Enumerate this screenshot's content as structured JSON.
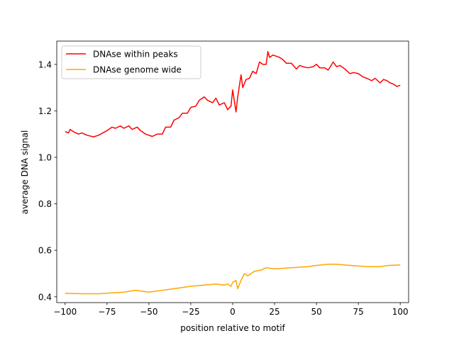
{
  "chart_data": {
    "type": "line",
    "title": "",
    "xlabel": "position relative to motif",
    "ylabel": "average DNA signal",
    "xlim": [
      -105,
      105
    ],
    "ylim": [
      0.375,
      1.5
    ],
    "xticks": [
      -100,
      -75,
      -50,
      -25,
      0,
      25,
      50,
      75,
      100
    ],
    "xtick_labels": [
      "−100",
      "−75",
      "−50",
      "−25",
      "0",
      "25",
      "50",
      "75",
      "100"
    ],
    "yticks": [
      0.4,
      0.6,
      0.8,
      1.0,
      1.2,
      1.4
    ],
    "ytick_labels": [
      "0.4",
      "0.6",
      "0.8",
      "1.0",
      "1.2",
      "1.4"
    ],
    "grid": false,
    "legend_position": "top-left",
    "series": [
      {
        "name": "DNAse within peaks",
        "color": "#ff0000",
        "x": [
          -100,
          -98,
          -97,
          -95,
          -92,
          -90,
          -87,
          -83,
          -80,
          -75,
          -72,
          -70,
          -67,
          -65,
          -62,
          -60,
          -57,
          -55,
          -52,
          -48,
          -45,
          -42,
          -40,
          -37,
          -35,
          -32,
          -30,
          -27,
          -25,
          -22,
          -20,
          -17,
          -15,
          -12,
          -10,
          -8,
          -5,
          -3,
          -1,
          0,
          2,
          3,
          5,
          6,
          8,
          10,
          12,
          14,
          16,
          18,
          20,
          21,
          22,
          24,
          26,
          28,
          30,
          32,
          35,
          38,
          40,
          42,
          45,
          48,
          50,
          52,
          55,
          57,
          60,
          62,
          64,
          67,
          70,
          72,
          75,
          78,
          80,
          83,
          85,
          88,
          90,
          92,
          94,
          96,
          98,
          100
        ],
        "y": [
          1.111,
          1.105,
          1.12,
          1.11,
          1.1,
          1.105,
          1.095,
          1.088,
          1.095,
          1.115,
          1.13,
          1.125,
          1.135,
          1.125,
          1.135,
          1.12,
          1.13,
          1.115,
          1.1,
          1.09,
          1.1,
          1.1,
          1.13,
          1.13,
          1.16,
          1.17,
          1.19,
          1.19,
          1.215,
          1.22,
          1.245,
          1.26,
          1.245,
          1.235,
          1.255,
          1.225,
          1.235,
          1.205,
          1.22,
          1.29,
          1.195,
          1.26,
          1.355,
          1.3,
          1.335,
          1.34,
          1.37,
          1.36,
          1.41,
          1.4,
          1.4,
          1.455,
          1.43,
          1.44,
          1.435,
          1.43,
          1.42,
          1.405,
          1.405,
          1.38,
          1.395,
          1.39,
          1.385,
          1.39,
          1.4,
          1.385,
          1.385,
          1.375,
          1.41,
          1.39,
          1.395,
          1.38,
          1.36,
          1.365,
          1.36,
          1.345,
          1.34,
          1.33,
          1.34,
          1.32,
          1.335,
          1.33,
          1.32,
          1.315,
          1.305,
          1.31
        ]
      },
      {
        "name": "DNAse genome wide",
        "color": "#ffa500",
        "x": [
          -100,
          -90,
          -80,
          -65,
          -58,
          -50,
          -40,
          -25,
          -10,
          -5,
          -3,
          -1,
          0,
          2,
          3,
          5,
          7,
          9,
          13,
          17,
          20,
          25,
          35,
          45,
          50,
          57,
          62,
          70,
          80,
          88,
          93,
          100
        ],
        "y": [
          0.415,
          0.413,
          0.413,
          0.42,
          0.428,
          0.42,
          0.43,
          0.445,
          0.455,
          0.45,
          0.455,
          0.445,
          0.462,
          0.47,
          0.435,
          0.47,
          0.5,
          0.49,
          0.51,
          0.515,
          0.525,
          0.52,
          0.525,
          0.53,
          0.535,
          0.54,
          0.54,
          0.535,
          0.53,
          0.53,
          0.535,
          0.537
        ]
      }
    ]
  }
}
